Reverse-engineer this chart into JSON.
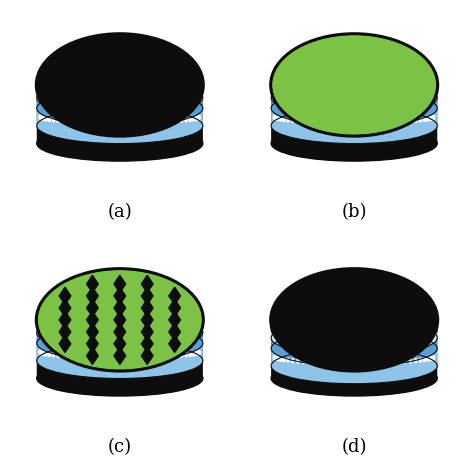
{
  "panels": [
    {
      "label": "(a)",
      "top_color": "#0d0d0d",
      "has_dots": false,
      "dot_color": null,
      "green_layer": false
    },
    {
      "label": "(b)",
      "top_color": "#7cc244",
      "has_dots": false,
      "dot_color": null,
      "green_layer": false
    },
    {
      "label": "(c)",
      "top_color": "#7cc244",
      "has_dots": true,
      "dot_color": "#0d0d0d",
      "green_layer": false
    },
    {
      "label": "(d)",
      "top_color": "#0d0d0d",
      "has_dots": false,
      "dot_color": null,
      "green_layer": true
    }
  ],
  "blue_light": "#8ec4e8",
  "blue_mid": "#5a9fd4",
  "blue_dark": "#1a3a6e",
  "black": "#0d0d0d",
  "white": "#ffffff",
  "green": "#7cc244",
  "label_fontsize": 13,
  "bg_color": "#ffffff"
}
